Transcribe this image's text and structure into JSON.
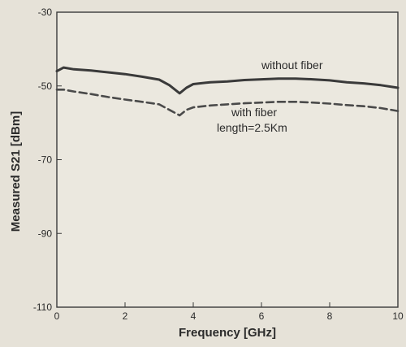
{
  "chart_data": {
    "type": "line",
    "title": "",
    "xlabel": "Frequency [GHz]",
    "ylabel": "Measured S21 [dBm]",
    "xlim": [
      0,
      10
    ],
    "ylim": [
      -110,
      -30
    ],
    "x_ticks": [
      0,
      2,
      4,
      6,
      8,
      10
    ],
    "y_ticks": [
      -110,
      -90,
      -70,
      -50,
      -30
    ],
    "grid": false,
    "legend": "none",
    "annotations": [
      {
        "text": "without fiber",
        "series": 0
      },
      {
        "text": "with fiber",
        "series": 1
      },
      {
        "text": "length=2.5Km",
        "series": 1
      }
    ],
    "series": [
      {
        "name": "without fiber",
        "style": "solid",
        "color": "#3a3a3a",
        "x": [
          0,
          0.2,
          0.5,
          1.0,
          1.5,
          2.0,
          2.5,
          3.0,
          3.3,
          3.6,
          3.8,
          4.0,
          4.5,
          5.0,
          5.5,
          6.0,
          6.5,
          7.0,
          7.5,
          8.0,
          8.5,
          9.0,
          9.5,
          10.0
        ],
        "y": [
          -46,
          -45,
          -45.5,
          -45.8,
          -46.3,
          -46.8,
          -47.5,
          -48.3,
          -49.8,
          -52,
          -50.5,
          -49.5,
          -49,
          -48.8,
          -48.4,
          -48.2,
          -48,
          -48,
          -48.2,
          -48.5,
          -49,
          -49.3,
          -49.8,
          -50.5
        ]
      },
      {
        "name": "with fiber",
        "style": "dashed",
        "color": "#4a4a4a",
        "x": [
          0,
          0.2,
          0.5,
          1.0,
          1.5,
          2.0,
          2.5,
          3.0,
          3.3,
          3.6,
          3.8,
          4.0,
          4.5,
          5.0,
          5.5,
          6.0,
          6.5,
          7.0,
          7.5,
          8.0,
          8.5,
          9.0,
          9.5,
          10.0
        ],
        "y": [
          -51,
          -51,
          -51.5,
          -52.2,
          -53,
          -53.7,
          -54.3,
          -55,
          -56.5,
          -58,
          -56.5,
          -55.8,
          -55.3,
          -55,
          -54.7,
          -54.5,
          -54.3,
          -54.3,
          -54.5,
          -54.8,
          -55.2,
          -55.5,
          -56,
          -56.8
        ]
      }
    ]
  }
}
